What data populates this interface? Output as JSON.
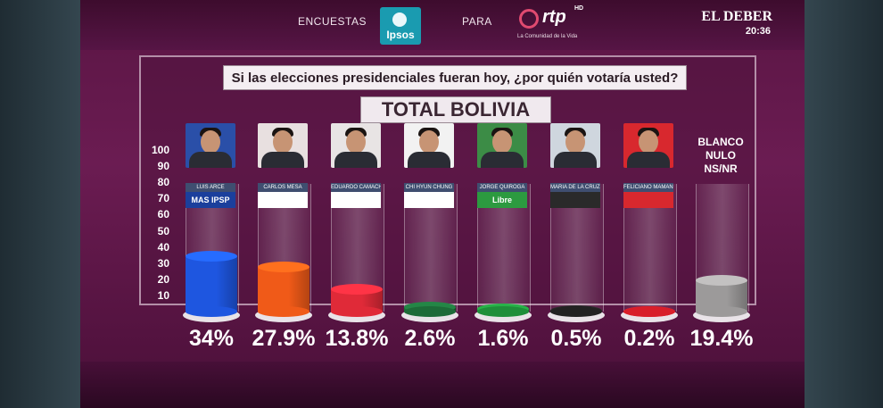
{
  "header": {
    "label_left": "ENCUESTAS",
    "pollster_logo": "Ipsos",
    "label_mid": "PARA",
    "channel_logo": "rtp",
    "channel_hd": "HD",
    "channel_tagline": "La Comunidad de la Vida",
    "brand": "EL DEBER",
    "clock": "20:36"
  },
  "colors": {
    "background": "#5a1544",
    "tube_base": "#e9e3e8"
  },
  "chart_data": {
    "type": "bar",
    "title": "Si las elecciones presidenciales fueran hoy, ¿por quién votaría usted?",
    "subtitle": "TOTAL BOLIVIA",
    "xlabel": "",
    "ylabel": "",
    "ylim": [
      0,
      100
    ],
    "yticks": [
      "100",
      "90",
      "80",
      "70",
      "60",
      "50",
      "40",
      "30",
      "20",
      "10"
    ],
    "grid": false,
    "categories": [
      "LUIS ARCE",
      "CARLOS MESA",
      "EDUARDO CAMACHO",
      "CHI HYUN CHUNG",
      "JORGE QUIROGA",
      "MARIA DE LA CRUZ BAYA",
      "FELICIANO MAMANI",
      "BLANCO NULO NS/NR"
    ],
    "values": [
      34,
      27.9,
      13.8,
      2.6,
      1.6,
      0.5,
      0.2,
      19.4
    ],
    "value_labels": [
      "34%",
      "27.9%",
      "13.8%",
      "2.6%",
      "1.6%",
      "0.5%",
      "0.2%",
      "19.4%"
    ],
    "party_labels": [
      "MAS IPSP",
      "",
      "",
      "",
      "Libre",
      "",
      "",
      ""
    ],
    "other_label_lines": [
      "BLANCO",
      "NULO",
      "NS/NR"
    ],
    "colors": [
      "#1e56e0",
      "#f05a18",
      "#e02a38",
      "#1d6b38",
      "#1f8f3a",
      "#222222",
      "#d81f2a",
      "#9c9a9a"
    ],
    "photo_backgrounds": [
      "#2a4fa8",
      "#e8e0e0",
      "#e8e4e4",
      "#f2f2f2",
      "#3c8c46",
      "#cfd6de",
      "#d8282e",
      ""
    ],
    "party_backgrounds": [
      "#1b3f9c",
      "#ffffff",
      "#ffffff",
      "#ffffff",
      "#2c9a40",
      "#2a2a2a",
      "#d8282e",
      ""
    ]
  }
}
